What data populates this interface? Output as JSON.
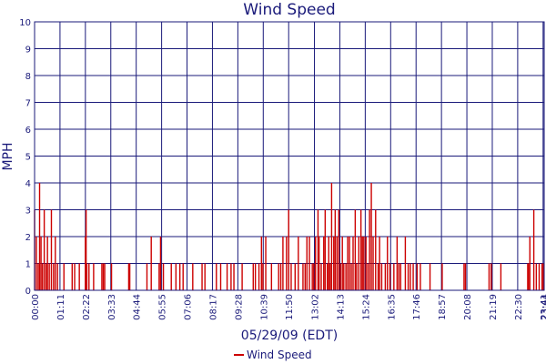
{
  "chart_data": {
    "type": "line",
    "title": "Wind Speed",
    "xlabel": "05/29/09 (EDT)",
    "ylabel": "MPH",
    "ylim": [
      0,
      10
    ],
    "y_ticks": [
      "0",
      "1",
      "2",
      "3",
      "4",
      "5",
      "6",
      "7",
      "8",
      "9",
      "10"
    ],
    "x_ticks": [
      "00:00",
      "01:11",
      "02:22",
      "03:33",
      "04:44",
      "05:55",
      "07:06",
      "08:17",
      "09:28",
      "10:39",
      "11:50",
      "13:02",
      "14:13",
      "15:24",
      "16:35",
      "17:46",
      "18:57",
      "20:08",
      "21:19",
      "22:30",
      "23:41",
      "23:44"
    ],
    "grid": true,
    "legend_position": "bottom-center",
    "series": [
      {
        "name": "Wind Speed",
        "color": "#cc0000",
        "x": [
          "00:00",
          "00:05",
          "00:10",
          "00:14",
          "00:18",
          "00:22",
          "00:27",
          "00:32",
          "00:36",
          "00:41",
          "00:47",
          "00:53",
          "00:58",
          "01:04",
          "01:22",
          "01:45",
          "01:52",
          "02:05",
          "02:22",
          "02:24",
          "02:26",
          "02:32",
          "02:45",
          "03:08",
          "03:12",
          "03:16",
          "03:35",
          "04:23",
          "04:26",
          "05:14",
          "05:26",
          "05:48",
          "05:52",
          "06:00",
          "06:22",
          "06:35",
          "06:46",
          "06:55",
          "07:22",
          "07:48",
          "07:56",
          "08:28",
          "08:40",
          "08:58",
          "09:09",
          "09:17",
          "09:40",
          "10:11",
          "10:17",
          "10:27",
          "10:34",
          "10:38",
          "10:46",
          "11:02",
          "11:22",
          "11:28",
          "11:34",
          "11:44",
          "11:50",
          "11:57",
          "12:08",
          "12:17",
          "12:30",
          "12:36",
          "12:41",
          "12:48",
          "12:56",
          "13:00",
          "13:05",
          "13:12",
          "13:15",
          "13:21",
          "13:28",
          "13:32",
          "13:38",
          "13:42",
          "13:46",
          "13:50",
          "13:56",
          "14:00",
          "14:05",
          "14:10",
          "14:15",
          "14:20",
          "14:24",
          "14:30",
          "14:35",
          "14:40",
          "14:45",
          "14:50",
          "14:56",
          "15:00",
          "15:06",
          "15:12",
          "15:16",
          "15:20",
          "15:26",
          "15:31",
          "15:36",
          "15:41",
          "15:46",
          "15:53",
          "16:00",
          "16:04",
          "16:10",
          "16:20",
          "16:26",
          "16:33",
          "16:44",
          "16:53",
          "16:58",
          "17:03",
          "17:16",
          "17:24",
          "17:30",
          "17:38",
          "17:49",
          "17:58",
          "18:25",
          "18:59",
          "20:00",
          "20:04",
          "21:10",
          "21:16",
          "21:43",
          "22:58",
          "23:00",
          "23:04",
          "23:15",
          "23:22",
          "23:30",
          "23:38",
          "23:42"
        ],
        "values": [
          3,
          2,
          1,
          4,
          2,
          1,
          3,
          1,
          2,
          1,
          3,
          1,
          2,
          1,
          1,
          1,
          1,
          1,
          2,
          3,
          1,
          1,
          1,
          1,
          1,
          1,
          1,
          1,
          1,
          1,
          2,
          1,
          2,
          1,
          1,
          1,
          1,
          1,
          1,
          1,
          1,
          1,
          1,
          1,
          1,
          1,
          1,
          1,
          1,
          1,
          2,
          1,
          2,
          1,
          1,
          1,
          2,
          2,
          3,
          1,
          1,
          2,
          1,
          1,
          2,
          2,
          1,
          1,
          2,
          3,
          2,
          1,
          2,
          3,
          1,
          2,
          1,
          4,
          2,
          3,
          2,
          3,
          1,
          2,
          1,
          1,
          2,
          2,
          1,
          2,
          3,
          1,
          2,
          3,
          2,
          2,
          2,
          1,
          3,
          4,
          2,
          3,
          1,
          2,
          1,
          1,
          2,
          1,
          1,
          2,
          1,
          1,
          2,
          1,
          1,
          1,
          1,
          1,
          1,
          1,
          1,
          1,
          1,
          1,
          1,
          1,
          1,
          2,
          3,
          1,
          1,
          1,
          1
        ]
      }
    ]
  }
}
